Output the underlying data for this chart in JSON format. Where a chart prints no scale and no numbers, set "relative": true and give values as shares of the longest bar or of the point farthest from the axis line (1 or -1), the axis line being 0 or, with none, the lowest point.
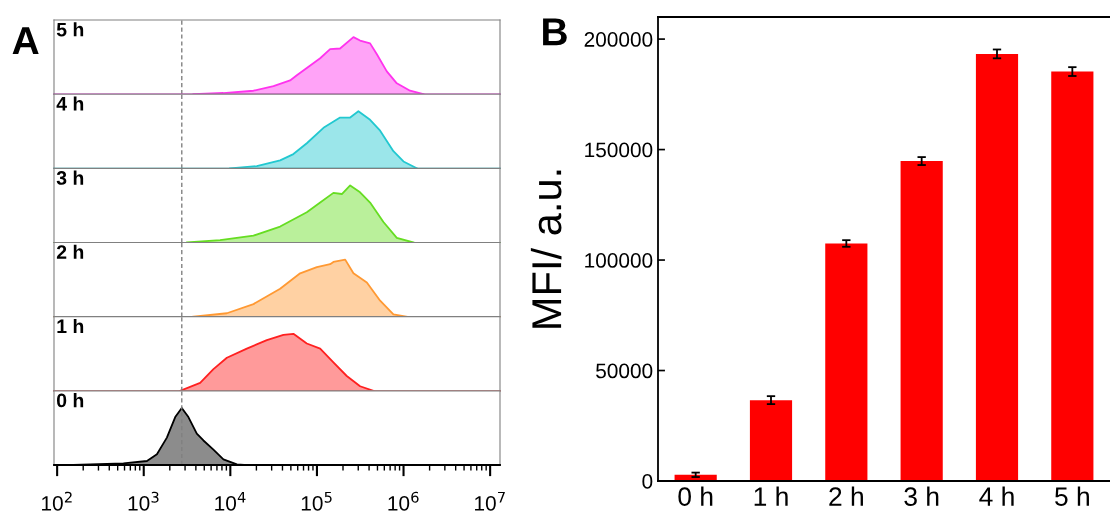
{
  "chart_data": [
    {
      "type": "area",
      "title": "A",
      "annotations": [
        "5 h"
      ],
      "relative": true,
      "log": "x",
      "xlim": [
        92,
        13000000
      ],
      "tick_labels": false,
      "ref_lines": [
        {
          "axis": "x",
          "value": 2750,
          "color": "#808080",
          "line_style": "dashed"
        }
      ],
      "series": [
        {
          "color": "#ff33ee",
          "x": [
            3750,
            8300,
            18500,
            31500,
            49000,
            58600,
            76400,
            109000,
            142000,
            185000,
            264000,
            315000,
            411000,
            492000,
            641000,
            836000,
            1190000,
            1700000
          ],
          "values": [
            0,
            0.02,
            0.06,
            0.14,
            0.24,
            0.33,
            0.46,
            0.63,
            0.79,
            0.8,
            1,
            0.94,
            0.89,
            0.7,
            0.4,
            0.19,
            0.06,
            0
          ]
        }
      ]
    },
    {
      "type": "area",
      "annotations": [
        "4 h"
      ],
      "relative": true,
      "log": "x",
      "xlim": [
        92,
        13000000
      ],
      "tick_labels": false,
      "ref_lines": [
        {
          "axis": "x",
          "value": 2750,
          "color": "#808080",
          "line_style": "dashed"
        }
      ],
      "series": [
        {
          "color": "#22c8d0",
          "x": [
            9950,
            20200,
            37600,
            53500,
            76400,
            119000,
            185000,
            242000,
            301000,
            411000,
            537000,
            764000,
            998000,
            1430000
          ],
          "values": [
            0,
            0.04,
            0.14,
            0.25,
            0.44,
            0.71,
            0.89,
            0.89,
            1,
            0.85,
            0.66,
            0.3,
            0.12,
            0
          ]
        }
      ]
    },
    {
      "type": "area",
      "annotations": [
        "3 h"
      ],
      "relative": true,
      "log": "x",
      "xlim": [
        92,
        13000000
      ],
      "tick_labels": false,
      "ref_lines": [
        {
          "axis": "x",
          "value": 2750,
          "color": "#808080",
          "line_style": "dashed"
        }
      ],
      "series": [
        {
          "color": "#66dd22",
          "x": [
            3150,
            7620,
            18500,
            37600,
            76400,
            109000,
            155000,
            194000,
            242000,
            315000,
            411000,
            586000,
            836000,
            1300000
          ],
          "values": [
            0,
            0.04,
            0.12,
            0.28,
            0.53,
            0.7,
            0.87,
            0.85,
            1,
            0.88,
            0.7,
            0.36,
            0.08,
            0
          ]
        }
      ]
    },
    {
      "type": "area",
      "annotations": [
        "2 h"
      ],
      "relative": true,
      "log": "x",
      "xlim": [
        92,
        13000000
      ],
      "tick_labels": false,
      "ref_lines": [
        {
          "axis": "x",
          "value": 2750,
          "color": "#808080",
          "line_style": "dashed"
        }
      ],
      "series": [
        {
          "color": "#ff9933",
          "x": [
            3750,
            9120,
            18500,
            37600,
            64000,
            99800,
            142000,
            155000,
            212000,
            264000,
            377000,
            537000,
            764000,
            1090000
          ],
          "values": [
            0,
            0.06,
            0.22,
            0.49,
            0.76,
            0.87,
            0.92,
            0.96,
            1,
            0.76,
            0.6,
            0.28,
            0.04,
            0
          ]
        }
      ]
    },
    {
      "type": "area",
      "annotations": [
        "1 h"
      ],
      "relative": true,
      "log": "x",
      "xlim": [
        92,
        13000000
      ],
      "tick_labels": false,
      "ref_lines": [
        {
          "axis": "x",
          "value": 2750,
          "color": "#808080",
          "line_style": "dashed"
        }
      ],
      "series": [
        {
          "color": "#ff2020",
          "x": [
            2630,
            4480,
            6380,
            9120,
            15500,
            26400,
            41000,
            53500,
            76400,
            109000,
            155000,
            221000,
            315000,
            449000
          ],
          "values": [
            0,
            0.14,
            0.38,
            0.58,
            0.74,
            0.89,
            0.98,
            1,
            0.83,
            0.74,
            0.5,
            0.26,
            0.08,
            0
          ]
        }
      ]
    },
    {
      "type": "area",
      "annotations": [
        "0 h"
      ],
      "relative": true,
      "log": "x",
      "xlim": [
        92,
        13000000
      ],
      "tick_labels": "x",
      "xticks": [
        {
          "value": 100,
          "label": "10$^{2}$"
        },
        {
          "value": 1000,
          "label": "10$^{3}$"
        },
        {
          "value": 10000,
          "label": "10$^{4}$"
        },
        {
          "value": 100000,
          "label": "10$^{5}$"
        },
        {
          "value": 1000000,
          "label": "10$^{6}$"
        },
        {
          "value": 10000000,
          "label": "10$^{7}$"
        }
      ],
      "ref_lines": [
        {
          "axis": "x",
          "value": 2750,
          "color": "#808080",
          "line_style": "dashed"
        }
      ],
      "series": [
        {
          "color": "#000000",
          "x": [
            154,
            240,
            583,
            1090,
            1420,
            1850,
            2310,
            2750,
            3280,
            4100,
            4890,
            6380,
            8320,
            11900,
            15500
          ],
          "values": [
            0,
            0.01,
            0.03,
            0.07,
            0.19,
            0.48,
            0.84,
            1,
            0.84,
            0.55,
            0.43,
            0.27,
            0.1,
            0.01,
            0
          ]
        }
      ]
    },
    {
      "type": "bar",
      "title": "B",
      "ylabel": "MFI/ a.u.",
      "categories": [
        "0 h",
        "1 h",
        "2 h",
        "3 h",
        "4 h",
        "5 h"
      ],
      "values": [
        2800,
        36600,
        107500,
        144800,
        193300,
        185300
      ],
      "errors": [
        1000,
        1800,
        1500,
        1800,
        2000,
        2000
      ],
      "color": "#ff0000",
      "ylim": [
        0,
        210000
      ],
      "yticks": [
        0,
        50000,
        100000,
        150000,
        200000
      ]
    }
  ]
}
